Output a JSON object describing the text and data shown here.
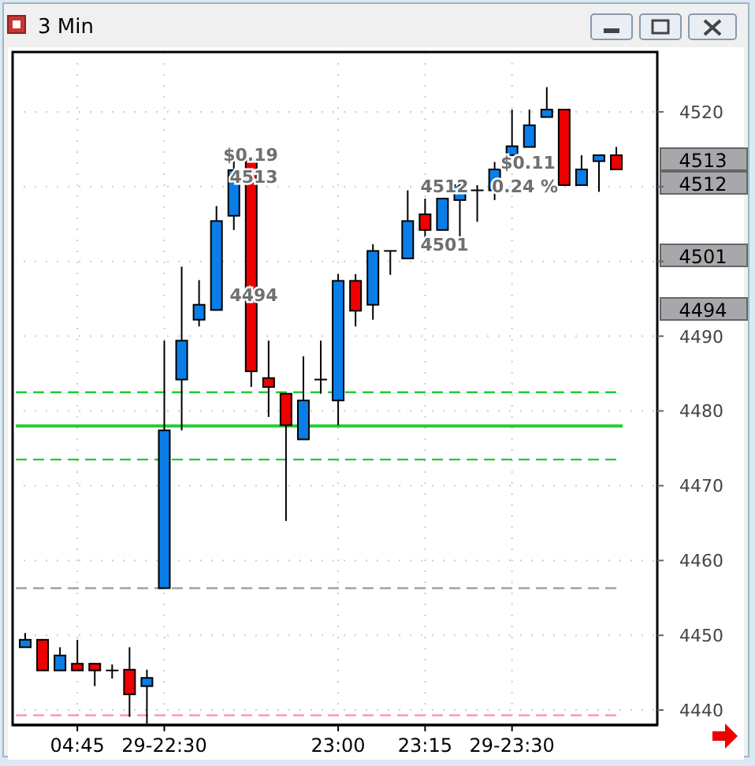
{
  "chart_data": {
    "type": "candlestick",
    "title": "3 Min",
    "categories": [
      null,
      null,
      null,
      "04:45",
      null,
      null,
      null,
      null,
      "29-22:30",
      null,
      null,
      null,
      null,
      null,
      null,
      null,
      null,
      null,
      "23:00",
      null,
      null,
      null,
      null,
      "23:15",
      null,
      null,
      null,
      null,
      "29-23:30",
      null,
      null,
      null,
      null,
      null,
      null
    ],
    "ohlc": [
      [
        4448.4,
        4450.3,
        4448.4,
        4449.4
      ],
      [
        4449.4,
        4449.4,
        4445.3,
        4445.3
      ],
      [
        4445.3,
        4448.4,
        4445.3,
        4447.3
      ],
      [
        4446.2,
        4449.4,
        4445.3,
        4445.3
      ],
      [
        4446.2,
        4446.2,
        4443.2,
        4445.3
      ],
      [
        4445.3,
        4446.1,
        4444.2,
        4445.3
      ],
      [
        4445.4,
        4448.4,
        4439.1,
        4442.1
      ],
      [
        4443.2,
        4445.4,
        4438.2,
        4444.3
      ],
      [
        4456.3,
        4489.4,
        4456.3,
        4477.4
      ],
      [
        4484.2,
        4499.3,
        4477.4,
        4489.4
      ],
      [
        4492.2,
        4497.5,
        4491.3,
        4494.2
      ],
      [
        4493.5,
        4507.4,
        4493.5,
        4505.4
      ],
      [
        4506.1,
        4513.5,
        4504.2,
        4512.2
      ],
      [
        4513.5,
        4513.5,
        4483.2,
        4485.3
      ],
      [
        4484.4,
        4489.4,
        4479.2,
        4483.2
      ],
      [
        4482.3,
        4482.3,
        4465.3,
        4478.1
      ],
      [
        4476.2,
        4487.3,
        4476.2,
        4481.4
      ],
      [
        4484.2,
        4489.4,
        4482.3,
        4484.2
      ],
      [
        4481.4,
        4498.3,
        4478.1,
        4497.4
      ],
      [
        4497.4,
        4498.3,
        4491.3,
        4493.4
      ],
      [
        4494.2,
        4502.3,
        4492.2,
        4501.4
      ],
      [
        4501.4,
        4501.4,
        4498.2,
        4501.4
      ],
      [
        4500.4,
        4509.5,
        4500.4,
        4505.4
      ],
      [
        4506.3,
        4508.4,
        4502.3,
        4504.2
      ],
      [
        4504.2,
        4508.4,
        4504.2,
        4508.4
      ],
      [
        4508.2,
        4510.8,
        4503.2,
        4510.2
      ],
      [
        4509.5,
        4510.2,
        4505.3,
        4509.5
      ],
      [
        4509.5,
        4513.3,
        4508.2,
        4512.3
      ],
      [
        4514.2,
        4520.3,
        4514.2,
        4515.4
      ],
      [
        4515.3,
        4520.3,
        4515.3,
        4518.2
      ],
      [
        4519.3,
        4523.3,
        4519.3,
        4520.3
      ],
      [
        4520.3,
        4520.3,
        4510.2,
        4510.2
      ],
      [
        4510.2,
        4514.2,
        4510.2,
        4512.3
      ],
      [
        4513.4,
        4514.2,
        4509.3,
        4514.2
      ],
      [
        4514.2,
        4515.3,
        4512.3,
        4512.3
      ]
    ],
    "colors": [
      "#0a7ee8",
      "#ee0000",
      "#0a7ee8",
      "#ee0000",
      "#ee0000",
      "#000000",
      "#ee0000",
      "#0a7ee8",
      "#0a7ee8",
      "#0a7ee8",
      "#0a7ee8",
      "#0a7ee8",
      "#0a7ee8",
      "#ee0000",
      "#ee0000",
      "#ee0000",
      "#0a7ee8",
      "#000000",
      "#0a7ee8",
      "#ee0000",
      "#0a7ee8",
      "#000000",
      "#0a7ee8",
      "#ee0000",
      "#0a7ee8",
      "#0a7ee8",
      "#000000",
      "#0a7ee8",
      "#0a7ee8",
      "#0a7ee8",
      "#0a7ee8",
      "#ee0000",
      "#0a7ee8",
      "#0a7ee8",
      "#ee0000"
    ],
    "ylim": [
      4438,
      4528
    ],
    "yticks": [
      4440,
      4450,
      4460,
      4470,
      4480,
      4490,
      {
        "value": 4500,
        "label": null
      },
      {
        "value": 4510,
        "label": null
      },
      4520
    ],
    "grid": true,
    "ref_lines": [
      {
        "axis": "y",
        "value": 4482.5,
        "color": "#22cc33",
        "line_style": "dashed"
      },
      {
        "axis": "y",
        "value": 4478,
        "color": "#22cc33",
        "line_style": "solid"
      },
      {
        "axis": "y",
        "value": 4473.5,
        "color": "#22cc33",
        "line_style": "dashed"
      },
      {
        "axis": "y",
        "value": 4456.3,
        "color": "#999999",
        "line_style": "dashed"
      },
      {
        "axis": "y",
        "value": 4439.3,
        "color": "#ff88bb",
        "line_style": "dashed"
      }
    ],
    "annotations": [
      "$0.19",
      "4513",
      "4494",
      "$0.11",
      "4512",
      "0.24 %",
      "4501",
      "4513",
      "4512",
      "4501",
      "4494"
    ]
  }
}
